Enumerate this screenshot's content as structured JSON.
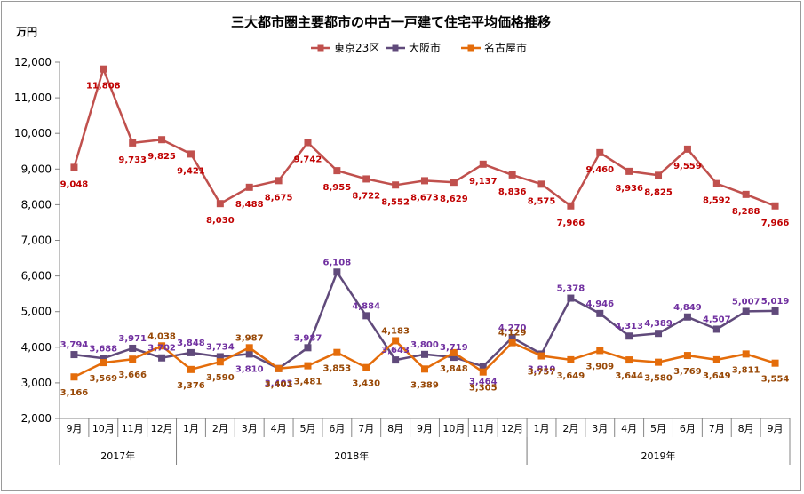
{
  "chart_data": {
    "type": "line",
    "title": "三大都市圏主要都市の中古一戸建て住宅平均価格推移",
    "ylabel": "万円",
    "ylim": [
      2000,
      12000
    ],
    "yticks": [
      "2,000",
      "3,000",
      "4,000",
      "5,000",
      "6,000",
      "7,000",
      "8,000",
      "9,000",
      "10,000",
      "11,000",
      "12,000"
    ],
    "categories": [
      "9月",
      "10月",
      "11月",
      "12月",
      "1月",
      "2月",
      "3月",
      "4月",
      "5月",
      "6月",
      "7月",
      "8月",
      "9月",
      "10月",
      "11月",
      "12月",
      "1月",
      "2月",
      "3月",
      "4月",
      "5月",
      "6月",
      "7月",
      "8月",
      "9月"
    ],
    "years": [
      {
        "label": "2017年",
        "start": 0,
        "end": 3
      },
      {
        "label": "2018年",
        "start": 4,
        "end": 15
      },
      {
        "label": "2019年",
        "start": 16,
        "end": 24
      }
    ],
    "series": [
      {
        "name": "東京23区",
        "color": "#c0504d",
        "label_color": "#c00000",
        "marker": "square",
        "values": [
          9048,
          11808,
          9733,
          9825,
          9421,
          8030,
          8488,
          8675,
          9742,
          8955,
          8722,
          8552,
          8673,
          8629,
          9137,
          8836,
          8575,
          7966,
          9460,
          8936,
          8825,
          9559,
          8592,
          8288,
          7966
        ],
        "labels": [
          "9,048",
          "11,808",
          "9,733",
          "9,825",
          "9,421",
          "8,030",
          "8,488",
          "8,675",
          "9,742",
          "8,955",
          "8,722",
          "8,552",
          "8,673",
          "8,629",
          "9,137",
          "8,836",
          "8,575",
          "7,966",
          "9,460",
          "8,936",
          "8,825",
          "9,559",
          "8,592",
          "8,288",
          "7,966"
        ]
      },
      {
        "name": "大阪市",
        "color": "#604a7b",
        "label_color": "#7030a0",
        "marker": "square",
        "values": [
          3794,
          3688,
          3971,
          3702,
          3848,
          3734,
          3810,
          3403,
          3987,
          6108,
          4884,
          3643,
          3800,
          3719,
          3464,
          4270,
          3810,
          5378,
          4946,
          4313,
          4389,
          4849,
          4507,
          5007,
          5019
        ],
        "labels": [
          "3,794",
          "3,688",
          "3,971",
          "3,702",
          "3,848",
          "3,734",
          "3,810",
          "3,403",
          "3,987",
          "6,108",
          "4,884",
          "3,643",
          "3,800",
          "3,719",
          "3,464",
          "4,270",
          "3,810",
          "5,378",
          "4,946",
          "4,313",
          "4,389",
          "4,849",
          "4,507",
          "5,007",
          "5,019"
        ]
      },
      {
        "name": "名古屋市",
        "color": "#e46c0a",
        "label_color": "#984806",
        "marker": "square",
        "values": [
          3166,
          3569,
          3666,
          4038,
          3376,
          3590,
          3987,
          3401,
          3481,
          3853,
          3430,
          4183,
          3389,
          3848,
          3305,
          4129,
          3757,
          3649,
          3909,
          3644,
          3580,
          3769,
          3649,
          3811,
          3554
        ],
        "labels": [
          "3,166",
          "3,569",
          "3,666",
          "4,038",
          "3,376",
          "3,590",
          "3,987",
          "3,401",
          "3,481",
          "3,853",
          "3,430",
          "4,183",
          "3,389",
          "3,848",
          "3,305",
          "4,129",
          "3,757",
          "3,649",
          "3,909",
          "3,644",
          "3,580",
          "3,769",
          "3,649",
          "3,811",
          "3,554"
        ]
      }
    ],
    "legend_position": "top-center",
    "grid": false
  }
}
